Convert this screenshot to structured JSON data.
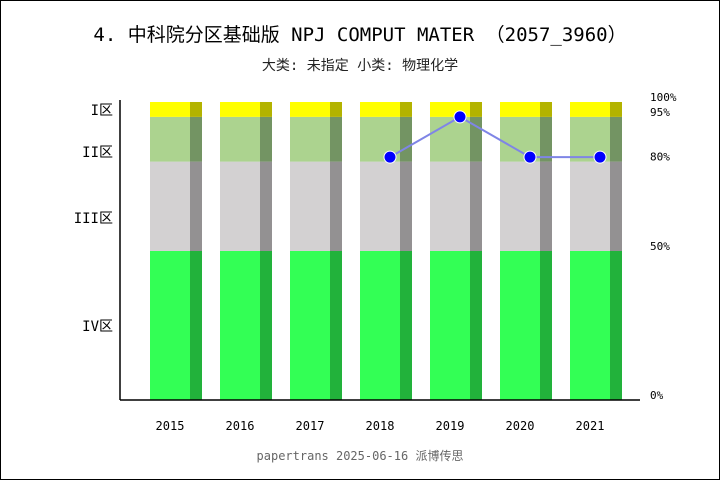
{
  "title": "4. 中科院分区基础版 NPJ COMPUT MATER （2057_3960）",
  "subtitle": "大类: 未指定 小类: 物理化学",
  "footer": "papertrans 2025-06-16 派博传思",
  "chart_data": {
    "type": "bar",
    "stacked": true,
    "categories": [
      "2015",
      "2016",
      "2017",
      "2018",
      "2019",
      "2020",
      "2021"
    ],
    "zones": [
      {
        "label": "IV区",
        "from": 0,
        "to": 50,
        "color": "#33ff55",
        "shade": "#22b23b"
      },
      {
        "label": "III区",
        "from": 50,
        "to": 80,
        "color": "#d3d1d2",
        "shade": "#939192"
      },
      {
        "label": "II区",
        "from": 80,
        "to": 95,
        "color": "#acd38f",
        "shade": "#739463"
      },
      {
        "label": "I区",
        "from": 95,
        "to": 100,
        "color": "#ffff00",
        "shade": "#b3b300"
      }
    ],
    "right_ticks": [
      "0%",
      "50%",
      "80%",
      "95%",
      "100%"
    ],
    "right_tick_values": [
      0,
      50,
      80,
      95,
      100
    ],
    "line": {
      "color": "#0000ff",
      "line_color": "#7f85e6",
      "values": [
        null,
        null,
        null,
        81.5,
        95,
        81.5,
        81.5
      ]
    },
    "ylim": [
      0,
      100
    ],
    "grid": false,
    "legend": "none"
  }
}
